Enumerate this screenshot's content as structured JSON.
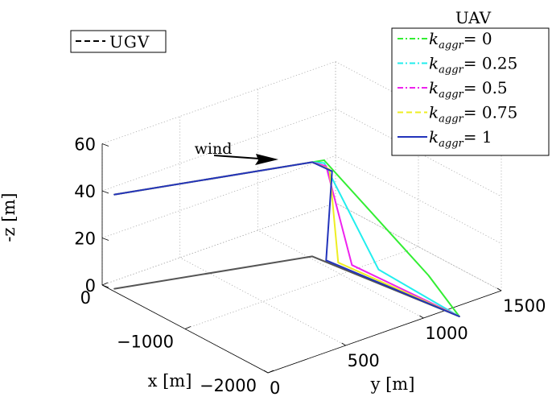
{
  "chart_data": {
    "type": "line",
    "subtype": "3d-trajectory",
    "title": "",
    "axes": {
      "x": {
        "label": "x [m]",
        "ticks": [
          0,
          -1000,
          -2000
        ],
        "range": [
          -2000,
          0
        ]
      },
      "y": {
        "label": "y [m]",
        "ticks": [
          0,
          500,
          1000,
          1500
        ],
        "range": [
          0,
          1500
        ]
      },
      "z": {
        "label": "-z [m]",
        "ticks": [
          0,
          20,
          40,
          60
        ],
        "range": [
          0,
          60
        ]
      }
    },
    "grid": true,
    "annotation": {
      "text": "wind",
      "arrow_direction": "+y"
    },
    "legends": [
      {
        "placement": "top-left",
        "title": "",
        "entries": [
          {
            "label": "UGV",
            "color": "#000000",
            "dash": "dashed"
          }
        ]
      },
      {
        "placement": "top-right",
        "title": "UAV",
        "entries": [
          {
            "label_var": "k",
            "label_sub": "aggr",
            "label_rhs": "= 0",
            "color": "#33ee33",
            "dash": "dashdot"
          },
          {
            "label_var": "k",
            "label_sub": "aggr",
            "label_rhs": "= 0.25",
            "color": "#22eeee",
            "dash": "dashdot"
          },
          {
            "label_var": "k",
            "label_sub": "aggr",
            "label_rhs": "= 0.5",
            "color": "#ee22ee",
            "dash": "dashdot"
          },
          {
            "label_var": "k",
            "label_sub": "aggr",
            "label_rhs": "= 0.75",
            "color": "#eeee22",
            "dash": "dashed"
          },
          {
            "label_var": "k",
            "label_sub": "aggr",
            "label_rhs": "= 1",
            "color": "#2233bb",
            "dash": "solid"
          }
        ]
      }
    ],
    "series": [
      {
        "name": "UGV",
        "color": "#555555",
        "points": [
          [
            -110,
            20,
            0
          ],
          [
            -620,
            1020,
            0
          ],
          [
            -2150,
            1150,
            0
          ]
        ]
      },
      {
        "name": "k_aggr = 0",
        "color": "#33ee33",
        "points": [
          [
            -110,
            20,
            40
          ],
          [
            -620,
            1020,
            40
          ],
          [
            -650,
            1080,
            40
          ],
          [
            -1440,
            1330,
            0
          ],
          [
            -2150,
            1150,
            0
          ]
        ]
      },
      {
        "name": "k_aggr = 0.25",
        "color": "#22eeee",
        "points": [
          [
            -110,
            20,
            40
          ],
          [
            -620,
            1020,
            40
          ],
          [
            -690,
            1060,
            40
          ],
          [
            -1120,
            1180,
            0
          ],
          [
            -2150,
            1150,
            0
          ]
        ]
      },
      {
        "name": "k_aggr = 0.5",
        "color": "#ee22ee",
        "points": [
          [
            -110,
            20,
            40
          ],
          [
            -620,
            1020,
            40
          ],
          [
            -740,
            1045,
            40
          ],
          [
            -930,
            1110,
            0
          ],
          [
            -2150,
            1150,
            0
          ]
        ]
      },
      {
        "name": "k_aggr = 0.75",
        "color": "#eeee22",
        "points": [
          [
            -110,
            20,
            40
          ],
          [
            -620,
            1020,
            40
          ],
          [
            -800,
            1035,
            40
          ],
          [
            -830,
            1075,
            0
          ],
          [
            -2150,
            1150,
            0
          ]
        ]
      },
      {
        "name": "k_aggr = 1",
        "color": "#2233bb",
        "points": [
          [
            -110,
            20,
            40
          ],
          [
            -620,
            1020,
            40
          ],
          [
            -840,
            1030,
            40
          ],
          [
            -740,
            1045,
            0
          ],
          [
            -2150,
            1150,
            0
          ]
        ]
      }
    ]
  }
}
